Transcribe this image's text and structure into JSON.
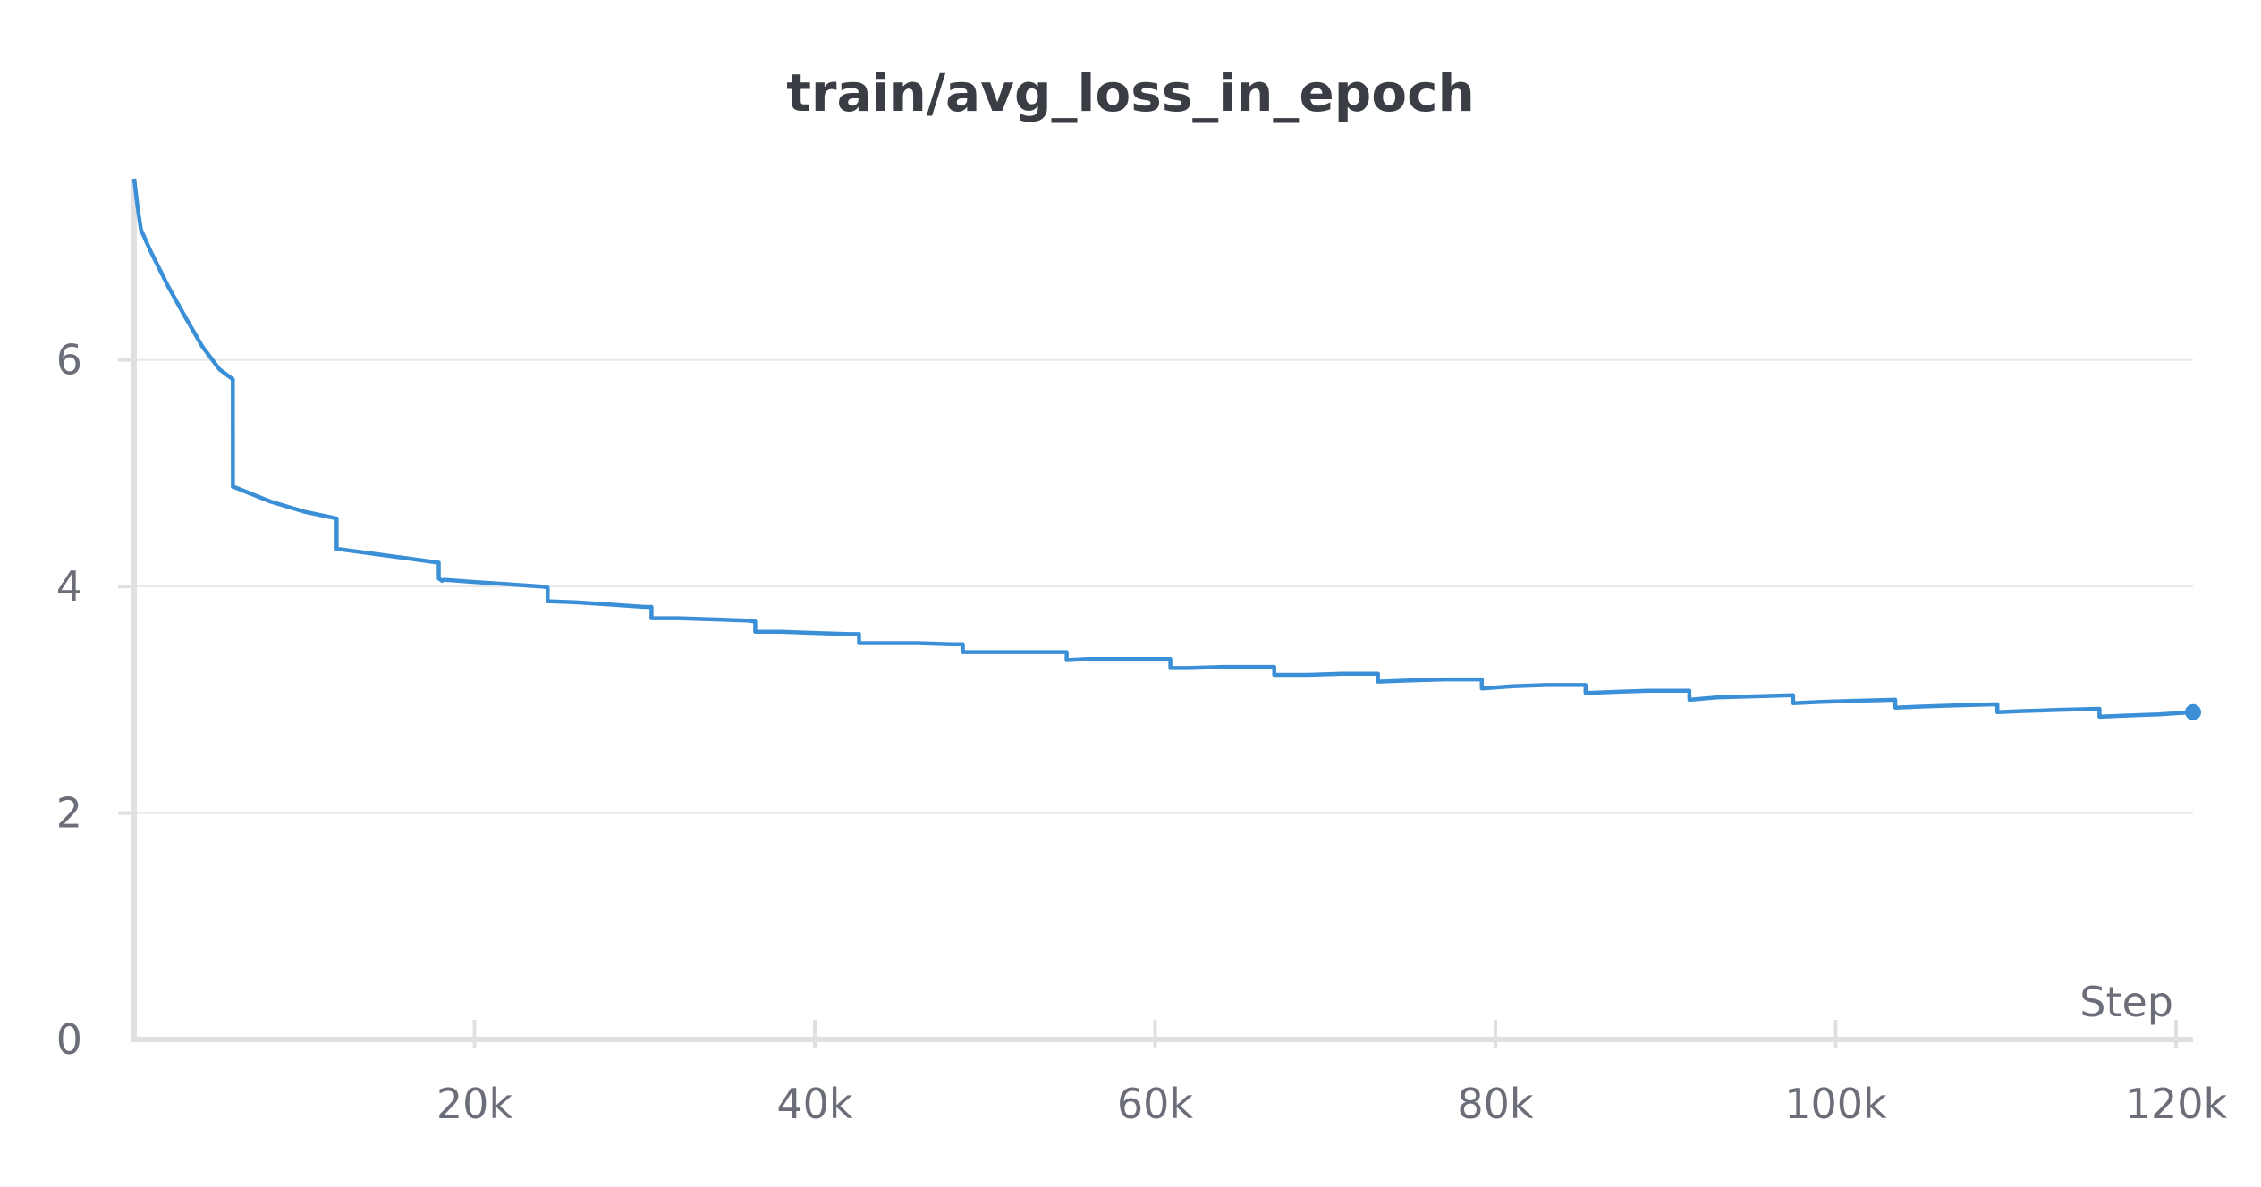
{
  "chart_data": {
    "type": "line",
    "title": "train/avg_loss_in_epoch",
    "xlabel": "Step",
    "ylabel": "",
    "xlim": [
      0,
      121000
    ],
    "ylim": [
      0,
      7.6
    ],
    "x_ticks": [
      20000,
      40000,
      60000,
      80000,
      100000,
      120000
    ],
    "x_tick_labels": [
      "20k",
      "40k",
      "60k",
      "80k",
      "100k",
      "120k"
    ],
    "y_ticks": [
      0,
      2,
      4,
      6
    ],
    "y_tick_labels": [
      "0",
      "2",
      "4",
      "6"
    ],
    "grid": true,
    "colors": {
      "line": "#3a8fd6",
      "grid": "#e8e8ea",
      "axis": "#e0e0e2",
      "text": "#6b6e78",
      "title": "#3b3d45"
    },
    "series": [
      {
        "name": "",
        "x": [
          0,
          200,
          400,
          1000,
          2000,
          3000,
          4000,
          5000,
          5800,
          5801,
          6000,
          8000,
          10000,
          11900,
          11901,
          12000,
          14000,
          16000,
          17900,
          17901,
          18100,
          18200,
          20000,
          22000,
          24000,
          24300,
          24301,
          26000,
          28000,
          30000,
          30400,
          30401,
          32000,
          34000,
          36000,
          36500,
          36501,
          38000,
          40000,
          42000,
          42600,
          42601,
          44000,
          46000,
          48000,
          48700,
          48701,
          50000,
          52000,
          54000,
          54800,
          54801,
          56000,
          58000,
          60000,
          60900,
          60901,
          62000,
          64000,
          66000,
          67000,
          67001,
          69000,
          71000,
          73000,
          73100,
          73101,
          75000,
          77000,
          79200,
          79201,
          81000,
          83000,
          85300,
          85301,
          87000,
          89000,
          91400,
          91401,
          93000,
          95000,
          97500,
          97501,
          99000,
          101000,
          103500,
          103501,
          105000,
          107000,
          109500,
          109501,
          111000,
          113000,
          115500,
          115501,
          117000,
          119000,
          121000
        ],
        "y": [
          7.6,
          7.35,
          7.15,
          6.95,
          6.65,
          6.38,
          6.12,
          5.92,
          5.83,
          4.88,
          4.87,
          4.75,
          4.66,
          4.6,
          4.33,
          4.33,
          4.29,
          4.25,
          4.21,
          4.07,
          4.05,
          4.06,
          4.04,
          4.02,
          4.0,
          3.99,
          3.87,
          3.86,
          3.84,
          3.82,
          3.82,
          3.72,
          3.72,
          3.71,
          3.7,
          3.69,
          3.6,
          3.6,
          3.59,
          3.58,
          3.58,
          3.5,
          3.5,
          3.5,
          3.49,
          3.49,
          3.42,
          3.42,
          3.42,
          3.42,
          3.42,
          3.35,
          3.36,
          3.36,
          3.36,
          3.36,
          3.28,
          3.28,
          3.29,
          3.29,
          3.29,
          3.22,
          3.22,
          3.23,
          3.23,
          3.23,
          3.16,
          3.17,
          3.18,
          3.18,
          3.1,
          3.12,
          3.13,
          3.13,
          3.06,
          3.07,
          3.08,
          3.08,
          3.0,
          3.02,
          3.03,
          3.04,
          2.97,
          2.98,
          2.99,
          3.0,
          2.93,
          2.94,
          2.95,
          2.96,
          2.89,
          2.9,
          2.91,
          2.92,
          2.85,
          2.86,
          2.87,
          2.89
        ]
      }
    ]
  }
}
